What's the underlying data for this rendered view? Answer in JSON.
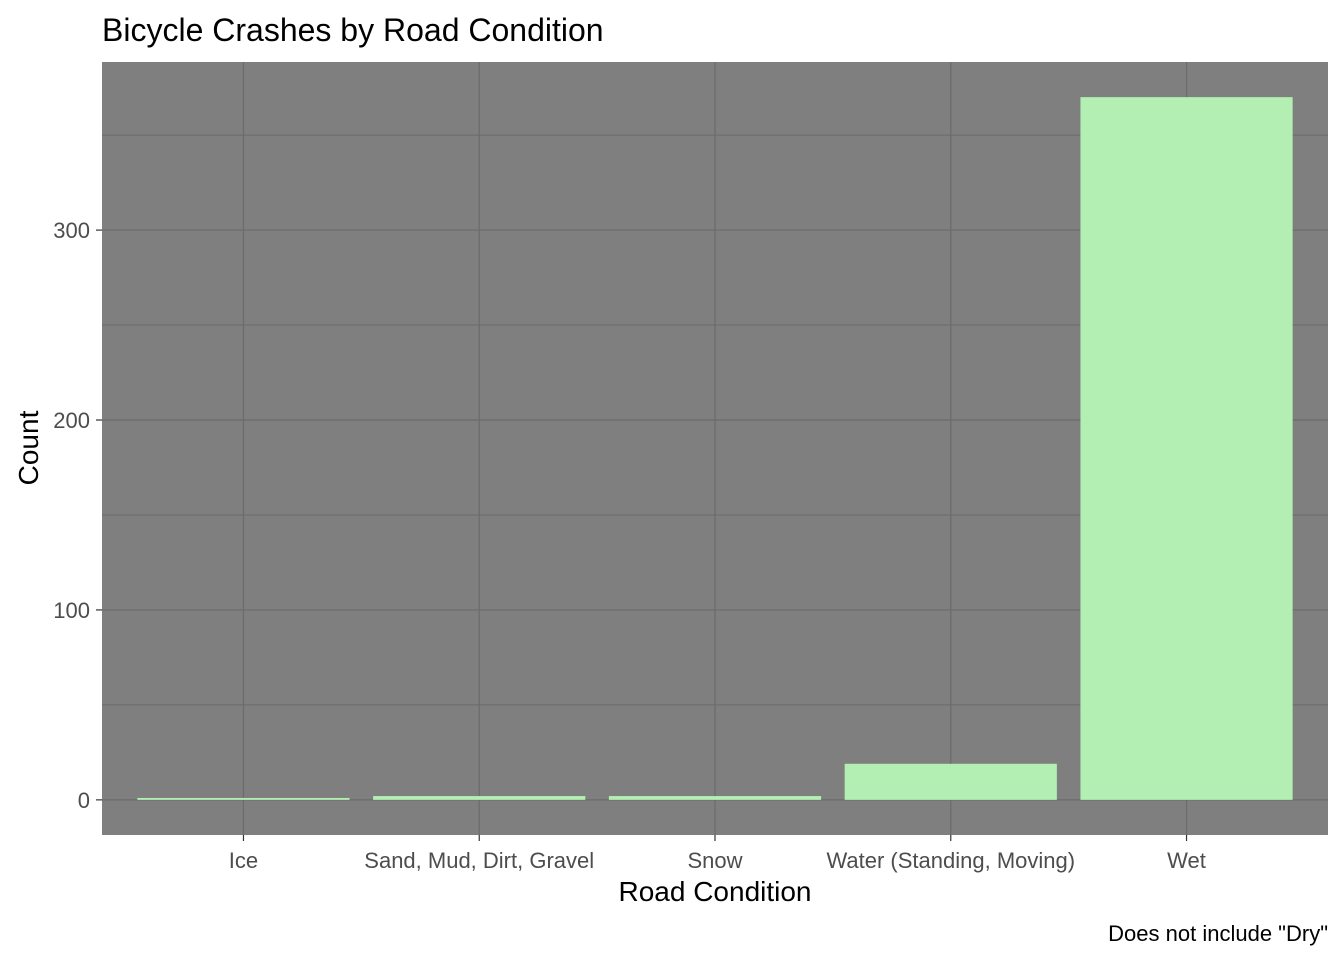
{
  "chart_data": {
    "type": "bar",
    "title": "Bicycle Crashes by Road Condition",
    "xlabel": "Road Condition",
    "ylabel": "Count",
    "caption": "Does not include \"Dry\"",
    "categories": [
      "Ice",
      "Sand, Mud, Dirt, Gravel",
      "Snow",
      "Water (Standing, Moving)",
      "Wet"
    ],
    "values": [
      1,
      2,
      2,
      19,
      370
    ],
    "yticks": [
      0,
      100,
      200,
      300
    ],
    "ytick_labels": [
      "0",
      "100",
      "200",
      "300"
    ],
    "ylim": [
      -18.5,
      388.5
    ],
    "grid": true,
    "colors": {
      "panel": "#7f7f7f",
      "grid": "#6b6b6b",
      "bar": "#b3eeb3"
    }
  }
}
